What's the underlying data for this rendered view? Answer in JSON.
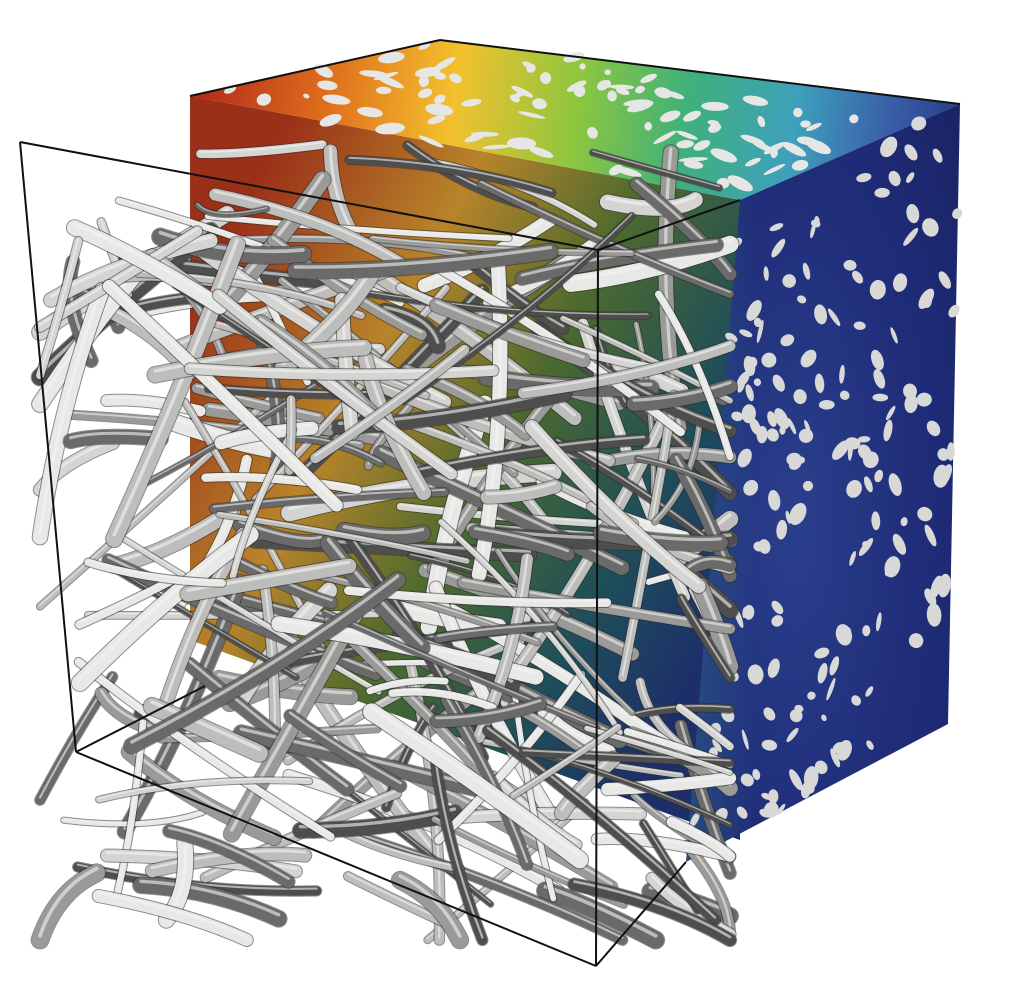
{
  "figure": {
    "background_color": "#ffffff",
    "frame_color": "#111111",
    "fiber_light_color": "#d4d4d2",
    "fiber_mid_color": "#9a9a98",
    "fiber_dark_color": "#4e4e4e",
    "field_colormap": [
      "#b0261a",
      "#e0701c",
      "#f3c12e",
      "#b8cf3a",
      "#5fb44c",
      "#2ea08a",
      "#3ea0bc",
      "#263f8a",
      "#1d2a72"
    ],
    "side_face_color": "#1f2a74"
  }
}
